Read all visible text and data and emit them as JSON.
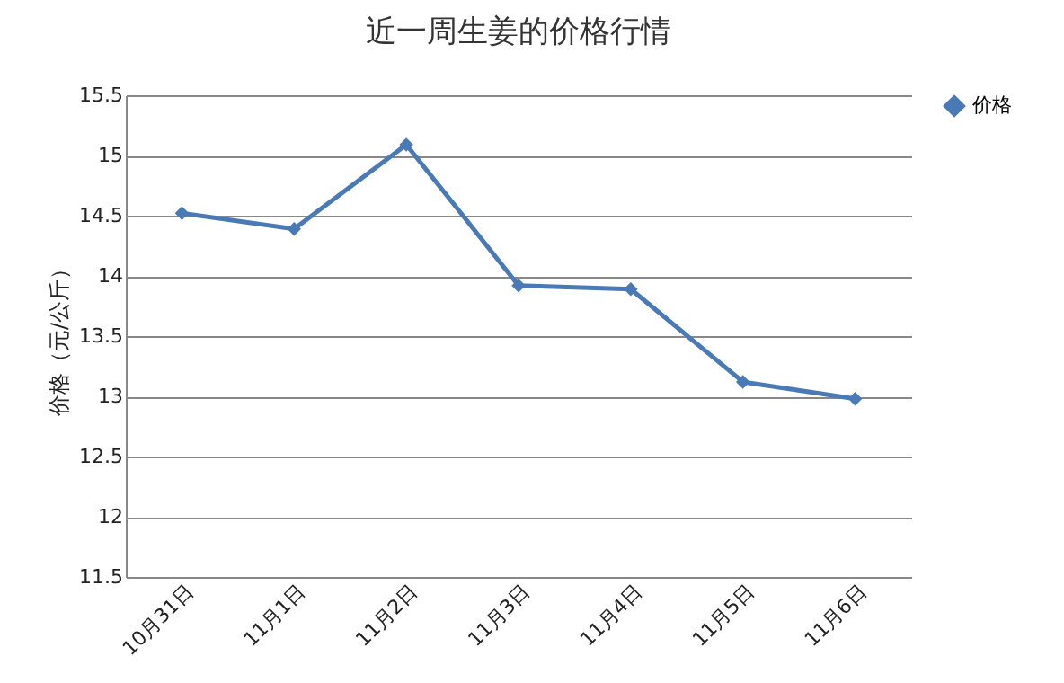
{
  "chart_data": {
    "type": "line",
    "title": "近一周生姜的价格行情",
    "ylabel": "价格（元/公斤）",
    "categories": [
      "10月31日",
      "11月1日",
      "11月2日",
      "11月3日",
      "11月4日",
      "11月5日",
      "11月6日"
    ],
    "series": [
      {
        "name": "价格",
        "color": "#4a7ab5",
        "values": [
          14.52,
          14.39,
          15.09,
          13.92,
          13.89,
          13.12,
          12.98
        ]
      }
    ],
    "ylim": [
      11.5,
      15.5
    ],
    "yticks": [
      11.5,
      12,
      12.5,
      13,
      13.5,
      14,
      14.5,
      15,
      15.5
    ],
    "grid": "y",
    "legend": "right",
    "marker": "diamond",
    "line_style": "solid"
  }
}
